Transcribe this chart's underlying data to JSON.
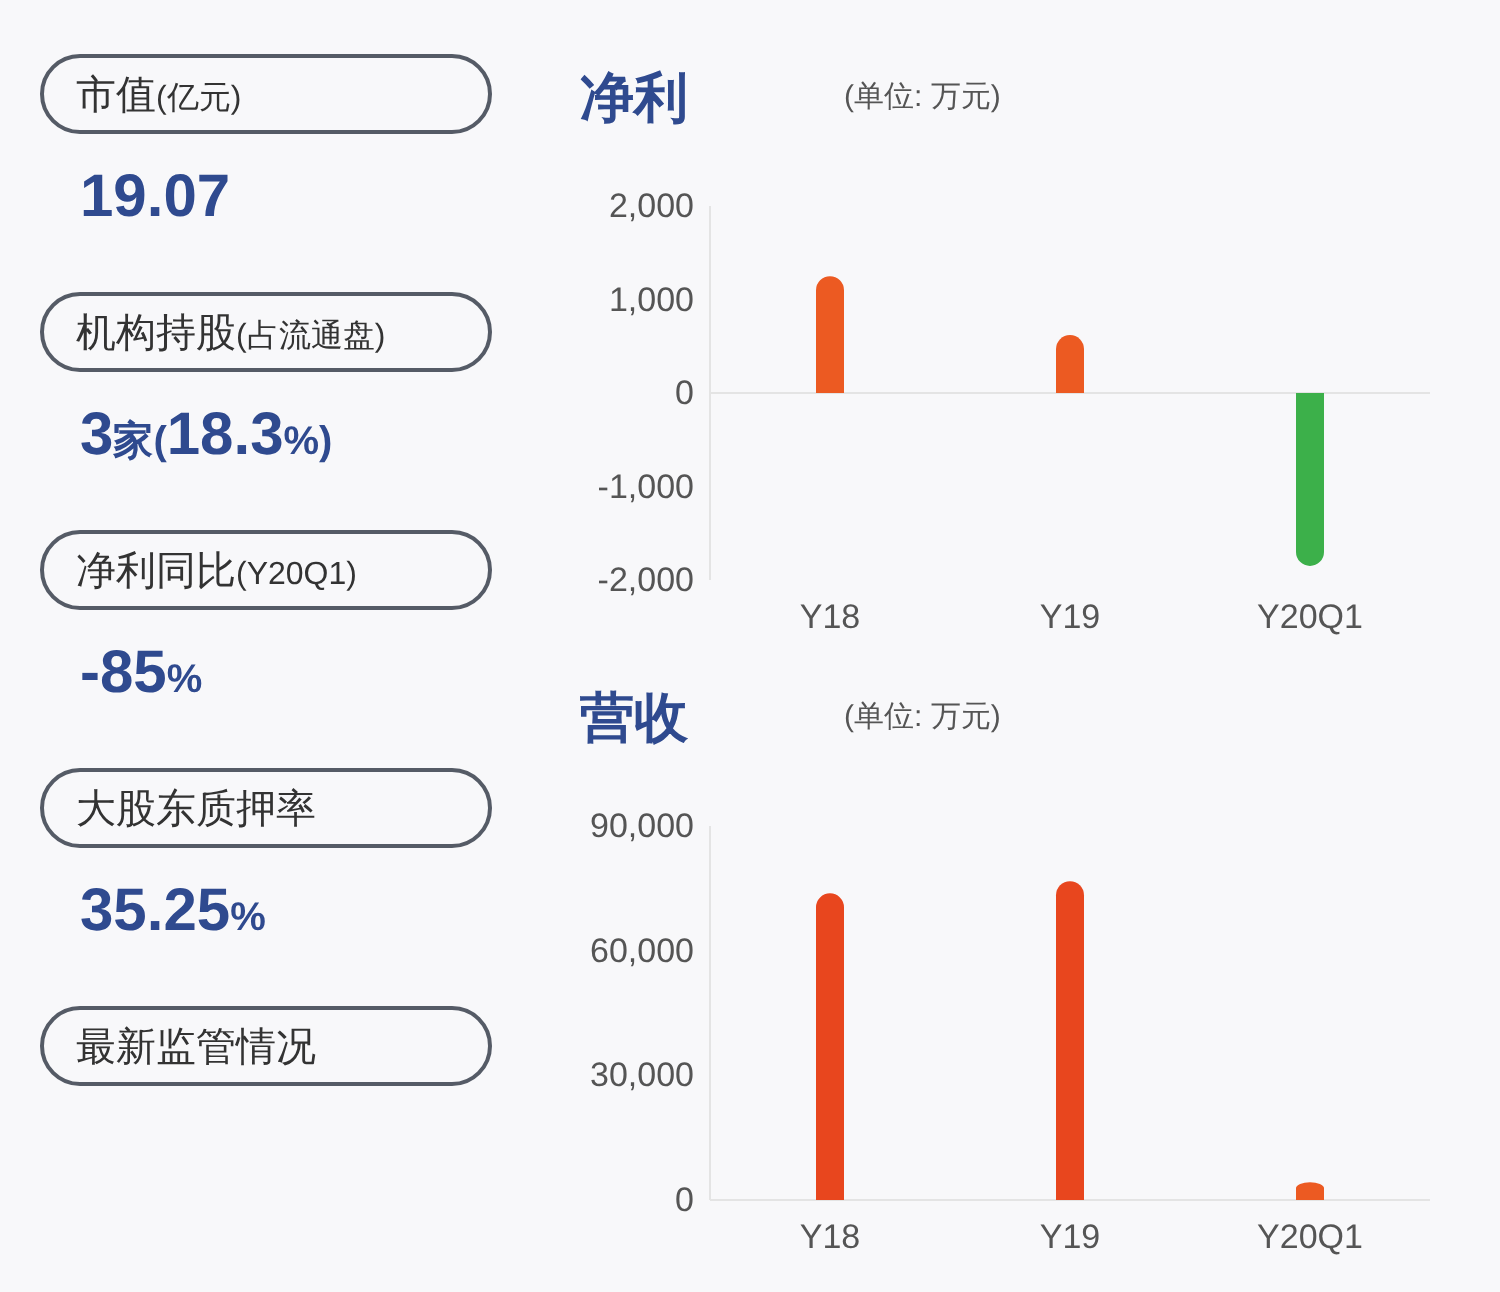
{
  "chart_data": [
    {
      "type": "other",
      "annotations": [
        "市值(亿元)",
        "19.07",
        "机构持股(占流通盘)",
        "3家(18.3%)",
        "净利同比(Y20Q1)",
        "-85%",
        "大股东质押率",
        "35.25%",
        "最新监管情况"
      ]
    },
    {
      "type": "bar",
      "title": "净利",
      "subtitle": "(单位: 万元)",
      "categories": [
        "Y18",
        "Y19",
        "Y20Q1"
      ],
      "values": [
        1250,
        620,
        -1850
      ],
      "colors": [
        "#ec5a22",
        "#ec5a22",
        "#3cb04a"
      ],
      "ylim": [
        -2000,
        2000
      ],
      "yticks": [
        {
          "value": -2000,
          "label": "-2,000"
        },
        {
          "value": -1000,
          "label": "-1,000"
        },
        0,
        {
          "value": 1000,
          "label": "1,000"
        },
        {
          "value": 2000,
          "label": "2,000"
        }
      ]
    },
    {
      "type": "bar",
      "title": "营收",
      "subtitle": "(单位: 万元)",
      "categories": [
        "Y18",
        "Y19",
        "Y20Q1"
      ],
      "values": [
        73800,
        76700,
        4300
      ],
      "colors": [
        "#e8461e",
        "#e8461e",
        "#ec5a22"
      ],
      "ylim": [
        0,
        90000
      ],
      "yticks": [
        0,
        {
          "value": 30000,
          "label": "30,000"
        },
        {
          "value": 60000,
          "label": "60,000"
        },
        {
          "value": 90000,
          "label": "90,000"
        }
      ]
    }
  ]
}
